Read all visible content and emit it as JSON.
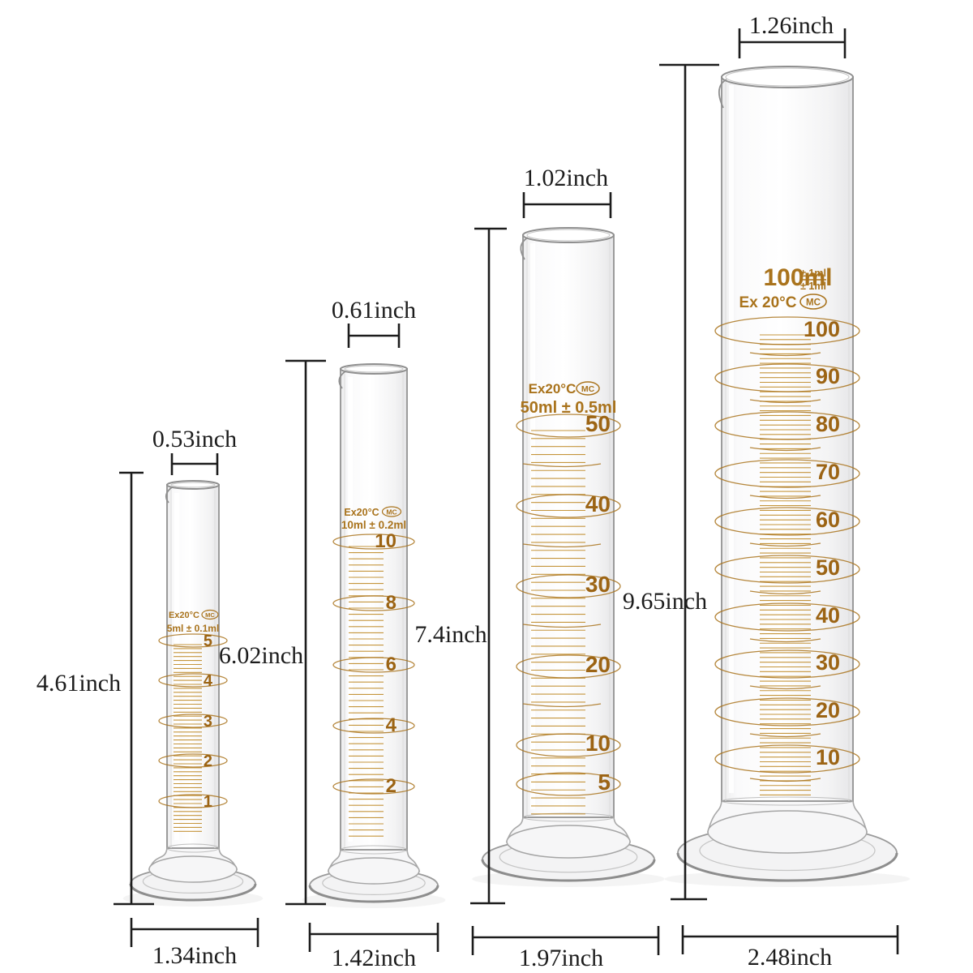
{
  "cylinders": [
    {
      "name": "5ml graduated cylinder",
      "marking": {
        "temp": "Ex20°C",
        "logo": "MC",
        "capacity": "5ml ± 0.1ml"
      },
      "scale_numbers": [
        5,
        4,
        3,
        2,
        1
      ],
      "dimensions": {
        "mouth_width": "0.53inch",
        "height": "4.61inch",
        "base_width": "1.34inch"
      }
    },
    {
      "name": "10ml graduated cylinder",
      "marking": {
        "temp": "Ex20°C",
        "logo": "MC",
        "capacity": "10ml ± 0.2ml"
      },
      "scale_numbers": [
        10,
        8,
        6,
        4,
        2
      ],
      "dimensions": {
        "mouth_width": "0.61inch",
        "height": "6.02inch",
        "base_width": "1.42inch"
      }
    },
    {
      "name": "50ml graduated cylinder",
      "marking": {
        "temp": "Ex20°C",
        "logo": "MC",
        "capacity": "50ml ± 0.5ml"
      },
      "scale_numbers": [
        50,
        40,
        30,
        20,
        10,
        5
      ],
      "dimensions": {
        "mouth_width": "1.02inch",
        "height": "7.4inch",
        "base_width": "1.97inch"
      }
    },
    {
      "name": "100ml graduated cylinder",
      "marking": {
        "temp": "Ex 20°C",
        "logo": "MC",
        "capacity": "100ml",
        "tolerance_top": "± 1ml",
        "tolerance_bottom": "± 1ml"
      },
      "scale_numbers": [
        100,
        90,
        80,
        70,
        60,
        50,
        40,
        30,
        20,
        10
      ],
      "dimensions": {
        "mouth_width": "1.26inch",
        "height": "9.65inch",
        "base_width": "2.48inch"
      }
    }
  ],
  "colors": {
    "graduation_print": "#a9731c",
    "scale_number": "#9c6414",
    "minor_tick": "#bf8a28",
    "dimension_ink": "#1c1c1c",
    "glass_outline": "#9b9b9b",
    "background": "#ffffff"
  }
}
